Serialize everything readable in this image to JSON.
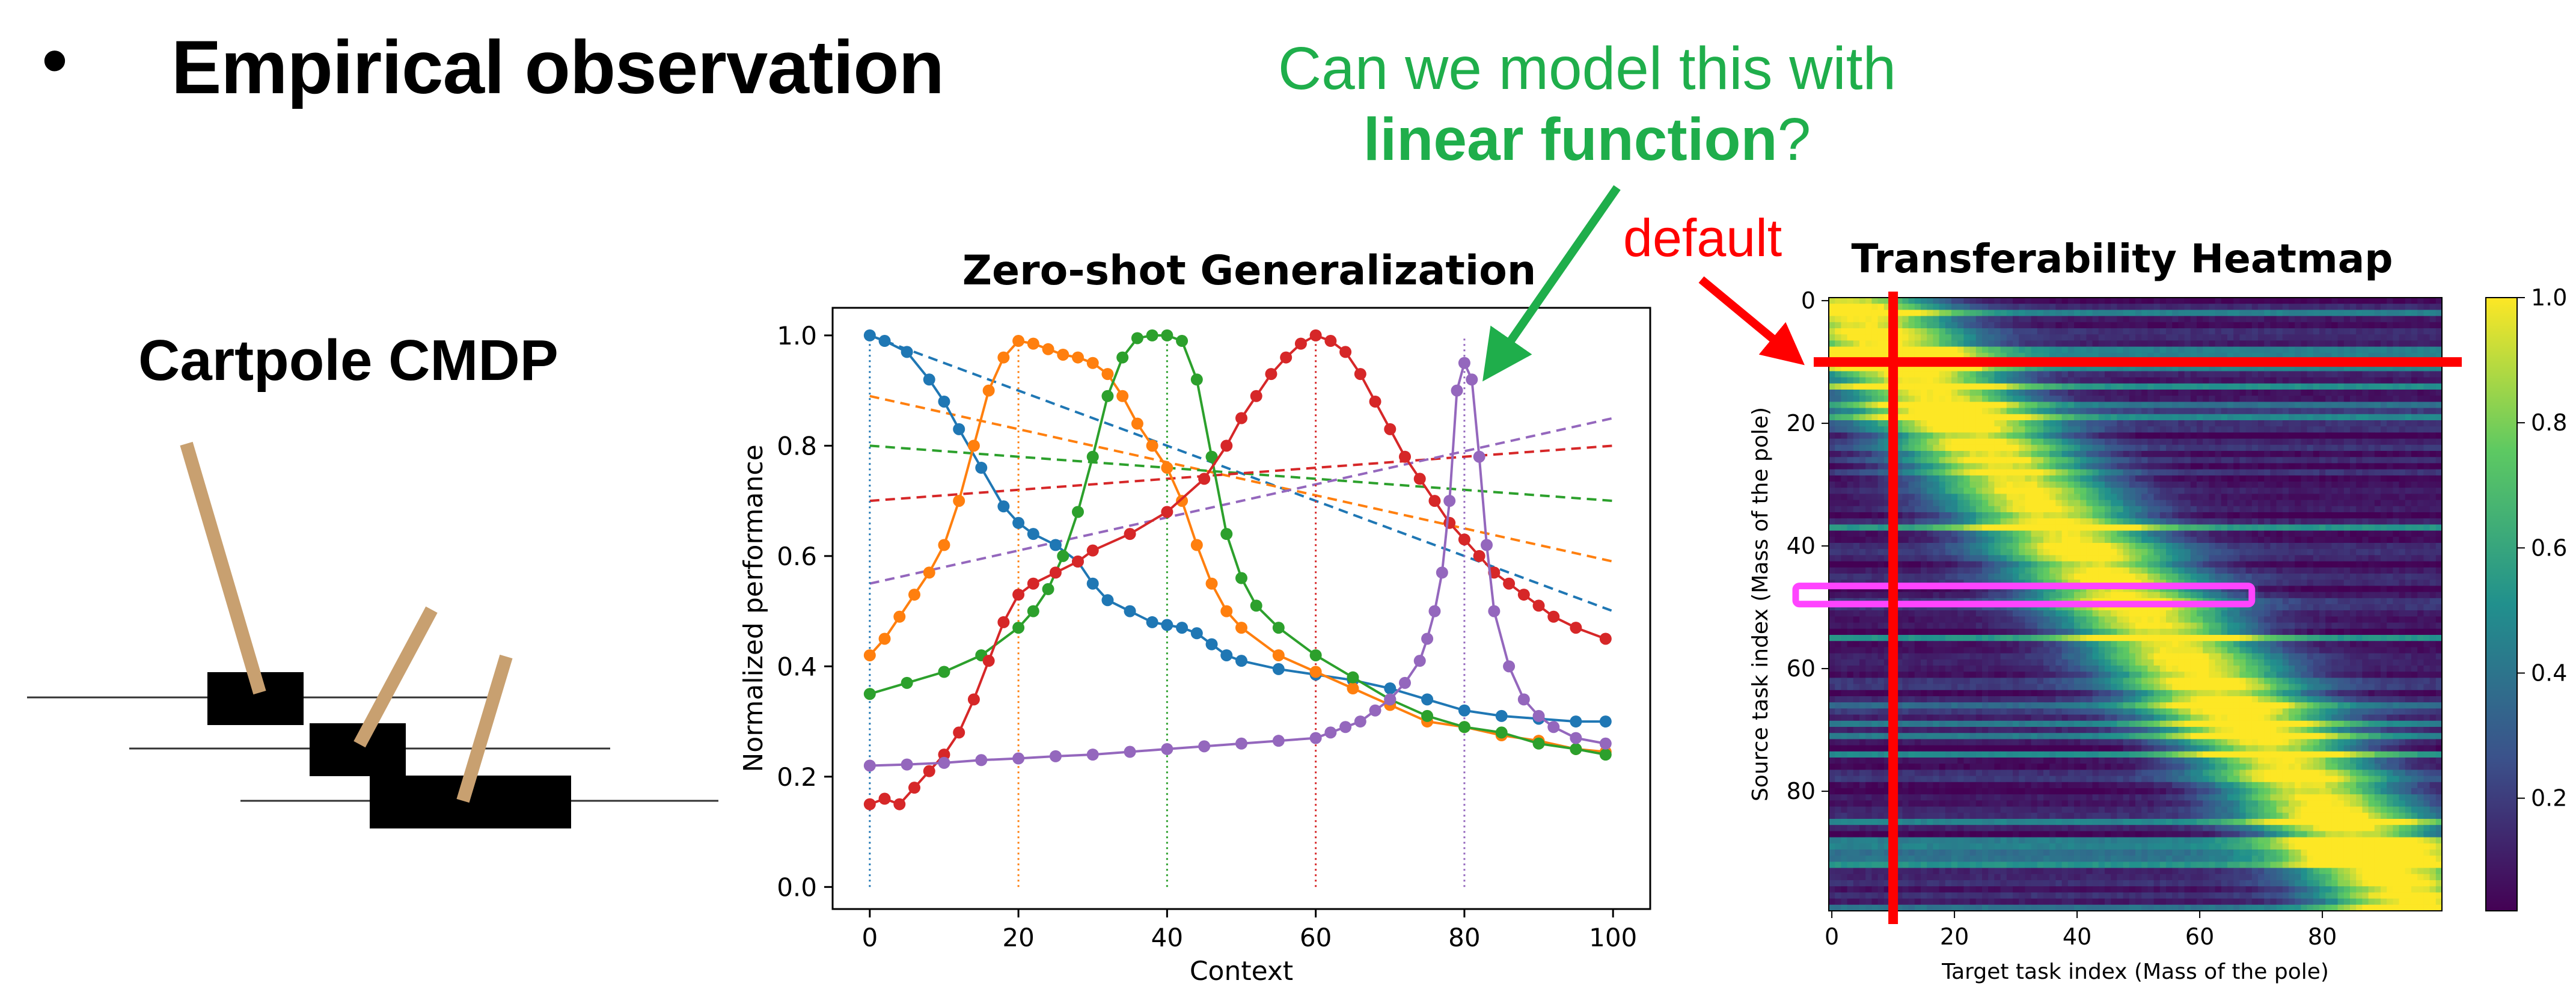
{
  "slide": {
    "bullet": "•",
    "title": "Empirical observation",
    "question_line1": "Can we model this with",
    "question_bold": "linear function",
    "question_end": "?",
    "default_label": "default",
    "cartpole_title": "Cartpole CMDP"
  },
  "colors": {
    "question": "#1fae4b",
    "default_marker": "#ff0000",
    "highlight_box": "#ff44ff",
    "pole": "#c8a070"
  },
  "chart_data": [
    {
      "type": "line",
      "title": "Zero-shot Generalization",
      "xlabel": "Context",
      "ylabel": "Normalized performance",
      "xlim": [
        -5,
        105
      ],
      "ylim": [
        -0.04,
        1.05
      ],
      "xticks": [
        "0",
        "20",
        "40",
        "60",
        "80",
        "100"
      ],
      "yticks": [
        "0.0",
        "0.2",
        "0.4",
        "0.6",
        "0.8",
        "1.0"
      ],
      "grid": false,
      "series": [
        {
          "color": "#1f77b4",
          "peak_context": 0,
          "x": [
            0,
            2,
            5,
            8,
            10,
            12,
            15,
            18,
            20,
            22,
            25,
            28,
            30,
            32,
            35,
            38,
            40,
            42,
            44,
            46,
            48,
            50,
            55,
            60,
            65,
            70,
            75,
            80,
            85,
            90,
            95,
            99
          ],
          "y": [
            1.0,
            0.99,
            0.97,
            0.92,
            0.88,
            0.83,
            0.76,
            0.69,
            0.66,
            0.64,
            0.62,
            0.59,
            0.55,
            0.52,
            0.5,
            0.48,
            0.475,
            0.47,
            0.46,
            0.44,
            0.42,
            0.41,
            0.395,
            0.385,
            0.375,
            0.36,
            0.34,
            0.32,
            0.31,
            0.305,
            0.3,
            0.3
          ],
          "linear_fit": [
            1.0,
            0.5
          ]
        },
        {
          "color": "#ff7f0e",
          "peak_context": 20,
          "x": [
            0,
            2,
            4,
            6,
            8,
            10,
            12,
            14,
            16,
            18,
            20,
            22,
            24,
            26,
            28,
            30,
            32,
            34,
            36,
            38,
            40,
            42,
            44,
            46,
            48,
            50,
            55,
            60,
            65,
            70,
            75,
            80,
            85,
            90,
            95,
            99
          ],
          "y": [
            0.42,
            0.45,
            0.49,
            0.53,
            0.57,
            0.62,
            0.7,
            0.8,
            0.9,
            0.96,
            0.99,
            0.985,
            0.975,
            0.965,
            0.96,
            0.95,
            0.93,
            0.89,
            0.84,
            0.8,
            0.76,
            0.7,
            0.62,
            0.55,
            0.5,
            0.47,
            0.42,
            0.39,
            0.36,
            0.33,
            0.3,
            0.29,
            0.275,
            0.265,
            0.25,
            0.245
          ],
          "linear_fit": [
            0.89,
            0.59
          ]
        },
        {
          "color": "#2ca02c",
          "peak_context": 40,
          "x": [
            0,
            5,
            10,
            15,
            20,
            22,
            24,
            26,
            28,
            30,
            32,
            34,
            36,
            38,
            40,
            42,
            44,
            46,
            48,
            50,
            52,
            55,
            60,
            65,
            70,
            75,
            80,
            85,
            90,
            95,
            99
          ],
          "y": [
            0.35,
            0.37,
            0.39,
            0.42,
            0.47,
            0.5,
            0.54,
            0.6,
            0.68,
            0.78,
            0.89,
            0.96,
            0.995,
            1.0,
            1.0,
            0.99,
            0.92,
            0.78,
            0.64,
            0.56,
            0.51,
            0.47,
            0.42,
            0.38,
            0.34,
            0.31,
            0.29,
            0.28,
            0.26,
            0.25,
            0.24
          ],
          "linear_fit": [
            0.8,
            0.7
          ]
        },
        {
          "color": "#d62728",
          "peak_context": 60,
          "x": [
            0,
            2,
            4,
            6,
            8,
            10,
            12,
            14,
            16,
            18,
            20,
            22,
            25,
            28,
            30,
            35,
            40,
            45,
            48,
            50,
            52,
            54,
            56,
            58,
            60,
            62,
            64,
            66,
            68,
            70,
            72,
            74,
            76,
            78,
            80,
            82,
            84,
            86,
            88,
            90,
            92,
            95,
            99
          ],
          "y": [
            0.15,
            0.16,
            0.15,
            0.18,
            0.21,
            0.24,
            0.28,
            0.34,
            0.41,
            0.48,
            0.53,
            0.55,
            0.57,
            0.59,
            0.61,
            0.64,
            0.68,
            0.74,
            0.8,
            0.85,
            0.89,
            0.93,
            0.96,
            0.985,
            1.0,
            0.99,
            0.97,
            0.93,
            0.88,
            0.83,
            0.78,
            0.74,
            0.7,
            0.66,
            0.63,
            0.6,
            0.57,
            0.55,
            0.53,
            0.51,
            0.49,
            0.47,
            0.45
          ],
          "linear_fit": [
            0.7,
            0.8
          ]
        },
        {
          "color": "#9467bd",
          "peak_context": 80,
          "x": [
            0,
            5,
            10,
            15,
            20,
            25,
            30,
            35,
            40,
            45,
            50,
            55,
            60,
            62,
            64,
            66,
            68,
            70,
            72,
            74,
            75,
            76,
            77,
            78,
            79,
            80,
            81,
            82,
            83,
            84,
            86,
            88,
            90,
            92,
            95,
            99
          ],
          "y": [
            0.22,
            0.222,
            0.225,
            0.23,
            0.233,
            0.237,
            0.24,
            0.245,
            0.25,
            0.255,
            0.26,
            0.265,
            0.27,
            0.28,
            0.29,
            0.3,
            0.32,
            0.34,
            0.37,
            0.41,
            0.45,
            0.5,
            0.57,
            0.7,
            0.9,
            0.95,
            0.92,
            0.78,
            0.62,
            0.5,
            0.4,
            0.34,
            0.31,
            0.29,
            0.27,
            0.26
          ],
          "linear_fit": [
            0.55,
            0.85
          ]
        }
      ]
    },
    {
      "type": "heatmap",
      "title": "Transferability Heatmap",
      "xlabel": "Target task index (Mass of the pole)",
      "ylabel": "Source task index (Mass of the pole)",
      "xticks": [
        "0",
        "20",
        "40",
        "60",
        "80"
      ],
      "yticks": [
        "0",
        "20",
        "40",
        "60",
        "80"
      ],
      "size": [
        100,
        100
      ],
      "colorbar_ticks": [
        "0.2",
        "0.4",
        "0.6",
        "0.8",
        "1.0"
      ],
      "colormap": "viridis",
      "default_index": 10,
      "highlight_row": 48,
      "highlight_cols": [
        0,
        68
      ]
    }
  ]
}
